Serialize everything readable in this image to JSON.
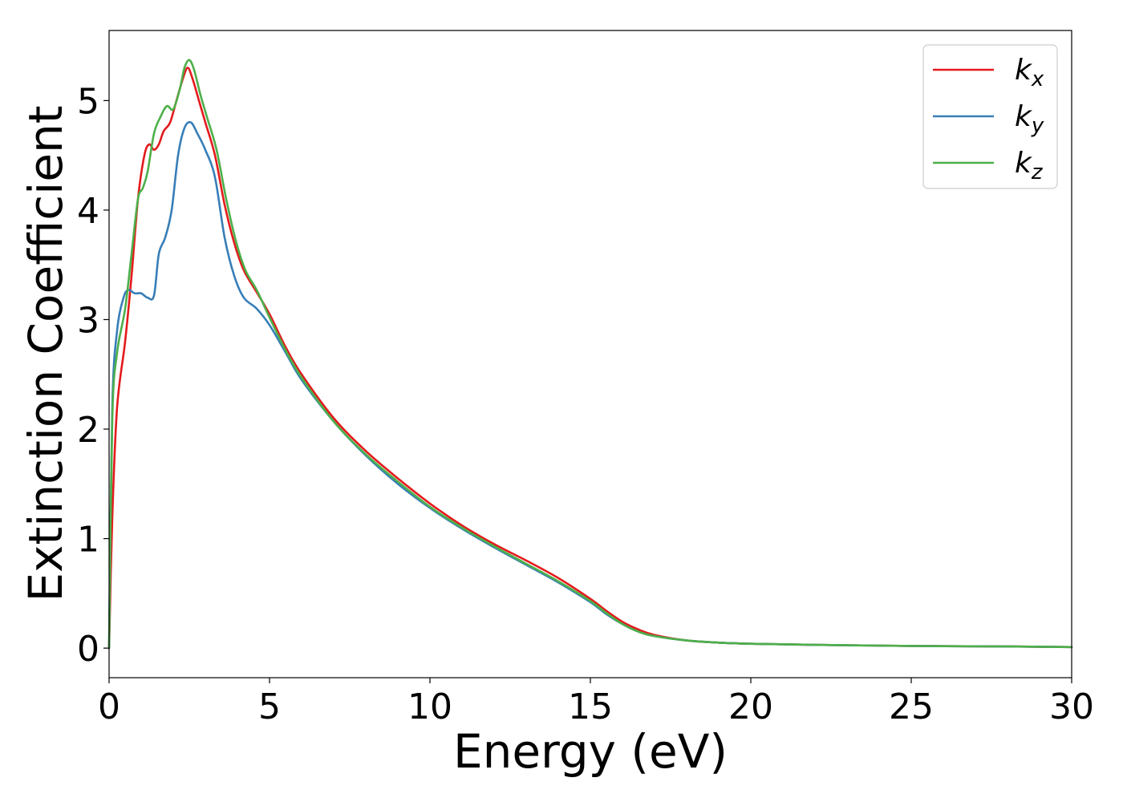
{
  "chart_data": {
    "type": "line",
    "title": "",
    "xlabel": "Energy (eV)",
    "ylabel": "Extinction Coefficient",
    "xlim": [
      0,
      30
    ],
    "ylim": [
      -0.27,
      5.64
    ],
    "xticks": [
      0,
      5,
      10,
      15,
      20,
      25,
      30
    ],
    "yticks": [
      0,
      1,
      2,
      3,
      4,
      5
    ],
    "grid": false,
    "legend_position": "top-right",
    "series": [
      {
        "name": "k",
        "subscript": "x",
        "color": "#e41a1c",
        "x": [
          0,
          0.1,
          0.25,
          0.5,
          0.7,
          0.9,
          1.1,
          1.25,
          1.4,
          1.55,
          1.7,
          1.9,
          2.1,
          2.3,
          2.45,
          2.6,
          2.8,
          3.0,
          3.3,
          3.6,
          3.9,
          4.2,
          4.6,
          5.0,
          5.5,
          6.0,
          7.0,
          8.0,
          9.0,
          10.0,
          11.0,
          12.0,
          13.0,
          14.0,
          15.0,
          15.5,
          16.0,
          16.5,
          17.0,
          18.0,
          19.0,
          20.0,
          22.0,
          25.0,
          28.0,
          30.0
        ],
        "y": [
          0,
          1.2,
          2.2,
          2.8,
          3.4,
          4.1,
          4.5,
          4.6,
          4.55,
          4.6,
          4.72,
          4.8,
          5.0,
          5.2,
          5.3,
          5.2,
          5.0,
          4.8,
          4.5,
          4.05,
          3.7,
          3.45,
          3.25,
          3.05,
          2.75,
          2.5,
          2.1,
          1.8,
          1.55,
          1.32,
          1.12,
          0.95,
          0.8,
          0.64,
          0.45,
          0.34,
          0.24,
          0.17,
          0.12,
          0.07,
          0.05,
          0.04,
          0.03,
          0.02,
          0.015,
          0.01
        ]
      },
      {
        "name": "k",
        "subscript": "y",
        "color": "#377eb8",
        "x": [
          0,
          0.1,
          0.25,
          0.45,
          0.6,
          0.8,
          1.0,
          1.2,
          1.4,
          1.55,
          1.75,
          1.95,
          2.15,
          2.35,
          2.55,
          2.75,
          3.0,
          3.3,
          3.6,
          3.9,
          4.2,
          4.6,
          5.0,
          5.5,
          6.0,
          7.0,
          8.0,
          9.0,
          10.0,
          11.0,
          12.0,
          13.0,
          14.0,
          15.0,
          15.5,
          16.0,
          16.5,
          17.0,
          18.0,
          19.0,
          20.0,
          22.0,
          25.0,
          28.0,
          30.0
        ],
        "y": [
          0,
          2.2,
          2.9,
          3.2,
          3.27,
          3.24,
          3.24,
          3.2,
          3.22,
          3.6,
          3.75,
          4.0,
          4.5,
          4.75,
          4.8,
          4.7,
          4.55,
          4.3,
          3.75,
          3.4,
          3.2,
          3.1,
          2.95,
          2.7,
          2.45,
          2.07,
          1.76,
          1.5,
          1.28,
          1.09,
          0.92,
          0.76,
          0.6,
          0.42,
          0.31,
          0.22,
          0.15,
          0.11,
          0.07,
          0.05,
          0.04,
          0.03,
          0.02,
          0.015,
          0.01
        ]
      },
      {
        "name": "k",
        "subscript": "z",
        "color": "#4daf4a",
        "x": [
          0,
          0.1,
          0.25,
          0.5,
          0.7,
          0.9,
          1.05,
          1.2,
          1.4,
          1.6,
          1.8,
          2.0,
          2.2,
          2.35,
          2.5,
          2.65,
          2.85,
          3.05,
          3.35,
          3.65,
          3.95,
          4.25,
          4.6,
          5.0,
          5.5,
          6.0,
          7.0,
          8.0,
          9.0,
          10.0,
          11.0,
          12.0,
          13.0,
          14.0,
          15.0,
          15.5,
          16.0,
          16.5,
          17.0,
          18.0,
          19.0,
          20.0,
          22.0,
          25.0,
          28.0,
          30.0
        ],
        "y": [
          0,
          2.1,
          2.7,
          3.1,
          3.6,
          4.1,
          4.2,
          4.35,
          4.7,
          4.85,
          4.95,
          4.92,
          5.1,
          5.3,
          5.37,
          5.28,
          5.05,
          4.85,
          4.55,
          4.1,
          3.72,
          3.45,
          3.27,
          3.02,
          2.72,
          2.47,
          2.07,
          1.77,
          1.52,
          1.29,
          1.1,
          0.93,
          0.77,
          0.61,
          0.43,
          0.32,
          0.22,
          0.15,
          0.11,
          0.07,
          0.05,
          0.04,
          0.03,
          0.02,
          0.015,
          0.01
        ]
      }
    ]
  }
}
